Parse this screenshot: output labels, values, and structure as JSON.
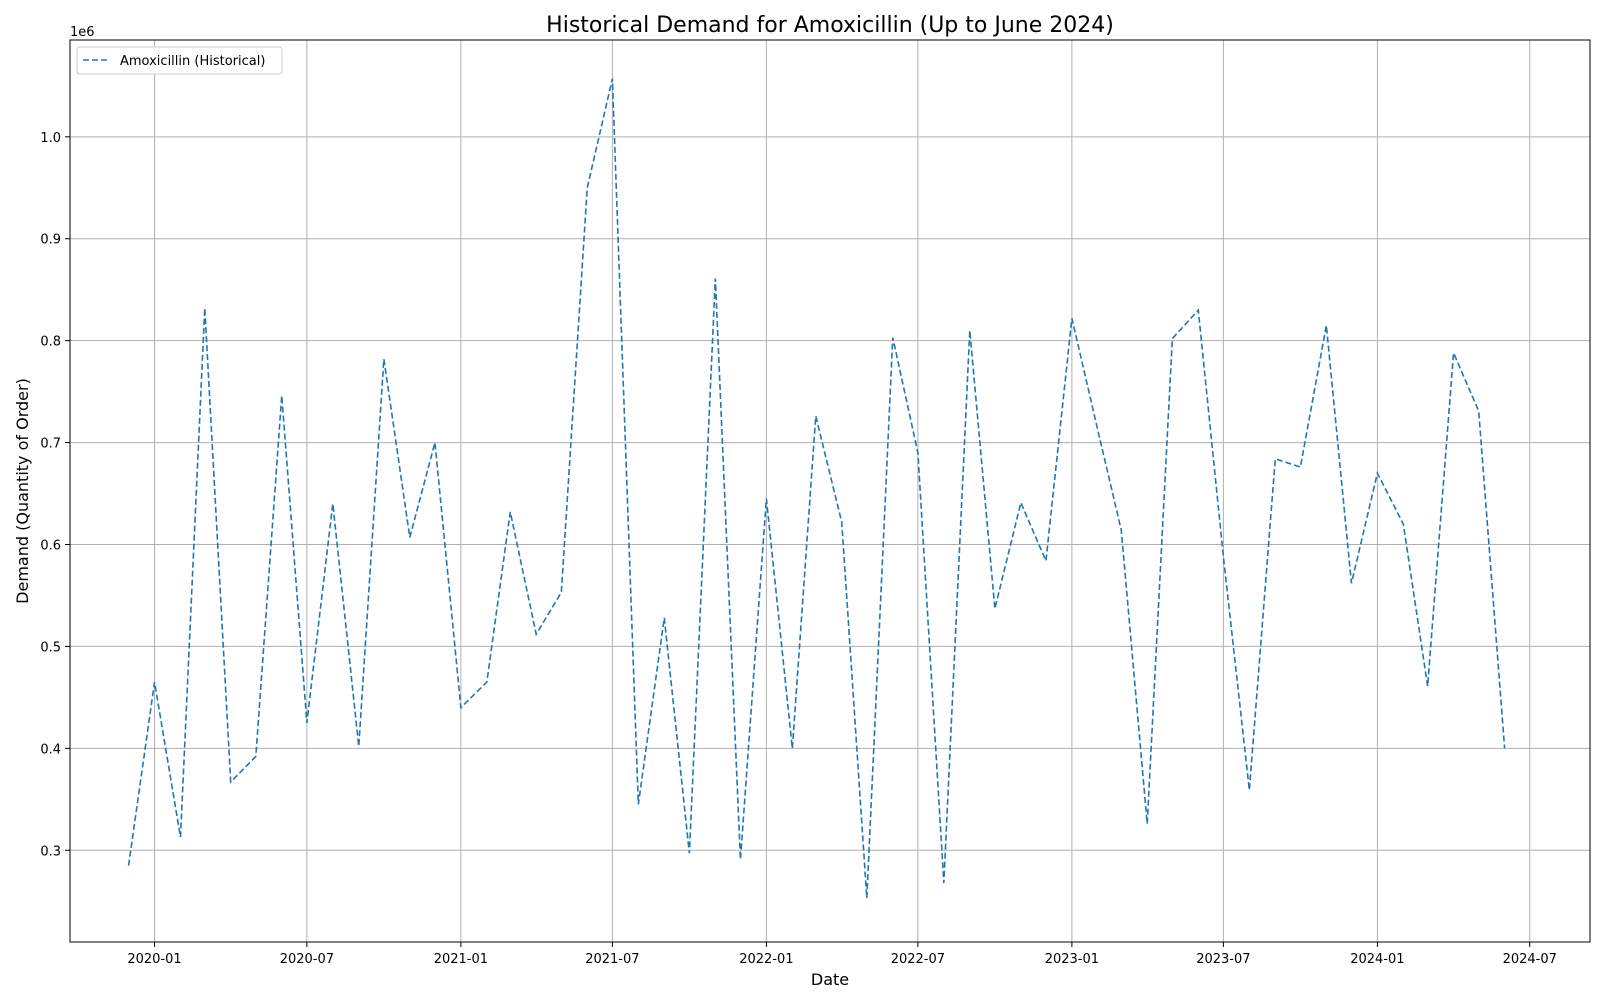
{
  "chart_data": {
    "type": "line",
    "title": "Historical Demand for Amoxicillin (Up to June 2024)",
    "xlabel": "Date",
    "ylabel": "Demand (Quantity of Order)",
    "y_offset_label": "1e6",
    "xlim": [
      "2019-09-22",
      "2024-09-11"
    ],
    "ylim": [
      0.21,
      1.095
    ],
    "x_ticks": [
      "2020-01-01",
      "2020-07-01",
      "2021-01-01",
      "2021-07-01",
      "2022-01-01",
      "2022-07-01",
      "2023-01-01",
      "2023-07-01",
      "2024-01-01",
      "2024-07-01"
    ],
    "x_tick_labels": [
      "2020-01",
      "2020-07",
      "2021-01",
      "2021-07",
      "2022-01",
      "2022-07",
      "2023-01",
      "2023-07",
      "2024-01",
      "2024-07"
    ],
    "y_ticks": [
      0.3,
      0.4,
      0.5,
      0.6,
      0.7,
      0.8,
      0.9,
      1.0
    ],
    "y_tick_labels": [
      "0.3",
      "0.4",
      "0.5",
      "0.6",
      "0.7",
      "0.8",
      "0.9",
      "1.0"
    ],
    "grid": true,
    "legend_position": "top-left",
    "colors": {
      "line": "#1f77b4",
      "grid": "#b0b0b0"
    },
    "series": [
      {
        "name": "Amoxicillin (Historical)",
        "style": "dashed",
        "x": [
          "2019-12-01",
          "2020-01-01",
          "2020-02-01",
          "2020-03-01",
          "2020-04-01",
          "2020-05-01",
          "2020-06-01",
          "2020-07-01",
          "2020-08-01",
          "2020-09-01",
          "2020-10-01",
          "2020-11-01",
          "2020-12-01",
          "2021-01-01",
          "2021-02-01",
          "2021-03-01",
          "2021-04-01",
          "2021-05-01",
          "2021-06-01",
          "2021-07-01",
          "2021-08-01",
          "2021-09-01",
          "2021-10-01",
          "2021-11-01",
          "2021-12-01",
          "2022-01-01",
          "2022-02-01",
          "2022-03-01",
          "2022-04-01",
          "2022-05-01",
          "2022-06-01",
          "2022-07-01",
          "2022-08-01",
          "2022-09-01",
          "2022-10-01",
          "2022-11-01",
          "2022-12-01",
          "2023-01-01",
          "2023-02-01",
          "2023-03-01",
          "2023-04-01",
          "2023-05-01",
          "2023-06-01",
          "2023-07-01",
          "2023-08-01",
          "2023-09-01",
          "2023-10-01",
          "2023-11-01",
          "2023-12-01",
          "2024-01-01",
          "2024-02-01",
          "2024-03-01",
          "2024-04-01",
          "2024-05-01",
          "2024-06-01"
        ],
        "values": [
          0.285,
          0.465,
          0.313,
          0.832,
          0.367,
          0.392,
          0.746,
          0.425,
          0.64,
          0.402,
          0.782,
          0.607,
          0.7,
          0.44,
          0.465,
          0.632,
          0.512,
          0.553,
          0.95,
          1.057,
          0.345,
          0.528,
          0.297,
          0.861,
          0.291,
          0.645,
          0.4,
          0.726,
          0.622,
          0.253,
          0.803,
          0.69,
          0.268,
          0.81,
          0.537,
          0.641,
          0.584,
          0.822,
          0.712,
          0.614,
          0.326,
          0.802,
          0.83,
          0.588,
          0.359,
          0.684,
          0.676,
          0.815,
          0.562,
          0.67,
          0.62,
          0.461,
          0.788,
          0.731,
          0.4
        ]
      }
    ]
  }
}
